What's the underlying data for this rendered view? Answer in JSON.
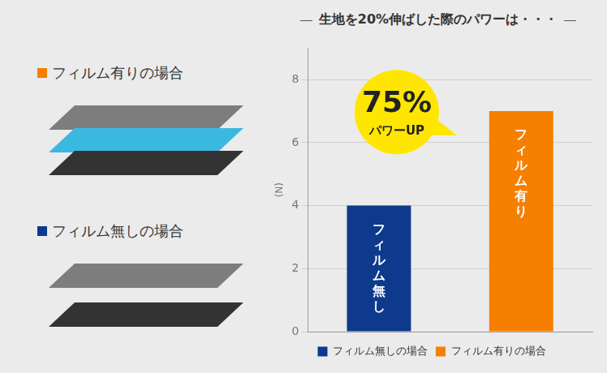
{
  "chart_data": {
    "type": "bar",
    "title": "生地を20%伸ばした際のパワーは・・・",
    "y_label": "(N)",
    "annotations": [
      "75%",
      "パワーUP"
    ],
    "categories": [
      "フィルム無し",
      "フィルム有り"
    ],
    "series": [
      {
        "name": "フィルム無しの場合",
        "color": "#0d3a8c",
        "values": [
          4,
          null
        ]
      },
      {
        "name": "フィルム有りの場合",
        "color": "#f77f00",
        "values": [
          null,
          7
        ]
      }
    ],
    "ylim": [
      0,
      9
    ],
    "yticks": [
      0,
      2,
      4,
      6,
      8
    ],
    "grid": true,
    "legend": "bottom",
    "tick_labels": "y"
  }
}
